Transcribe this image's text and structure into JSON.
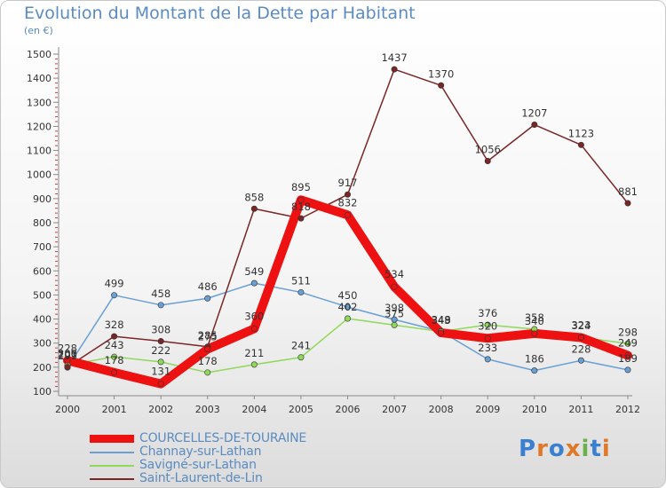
{
  "title": "Evolution du Montant de la Dette par Habitant",
  "unit": "(en €)",
  "logo": {
    "letters": [
      "P",
      "r",
      "o",
      "x",
      "i",
      "t",
      "i"
    ],
    "colors": [
      "#3a7fd0",
      "#e0782a",
      "#3a7fd0",
      "#e0782a",
      "#6ab04c",
      "#3a7fd0",
      "#e0782a"
    ]
  },
  "chart_data": {
    "type": "line",
    "title": "Evolution du Montant de la Dette par Habitant",
    "ylabel": "(en €)",
    "xlabel": "",
    "x": [
      "2000",
      "2001",
      "2002",
      "2003",
      "2004",
      "2005",
      "2006",
      "2007",
      "2008",
      "2009",
      "2010",
      "2011",
      "2012"
    ],
    "ylim": [
      100,
      1500
    ],
    "yticks": [
      "100",
      "200",
      "300",
      "400",
      "500",
      "600",
      "700",
      "800",
      "900",
      "1000",
      "1100",
      "1200",
      "1300",
      "1400",
      "1500"
    ],
    "grid": false,
    "legend": "bottom-left",
    "series": [
      {
        "name": "COURCELLES-DE-TOURAINE",
        "color": "#ee1111",
        "values": [
          228,
          178,
          131,
          275,
          360,
          895,
          832,
          534,
          343,
          320,
          340,
          323,
          249
        ],
        "labels": [
          "228",
          "178",
          "131",
          "275",
          "360",
          "895",
          "832",
          "534",
          "343",
          "320",
          "340",
          "323",
          "249"
        ]
      },
      {
        "name": "Channay-sur-Lathan",
        "color": "#6a9fd4",
        "values": [
          199,
          499,
          458,
          486,
          549,
          511,
          450,
          398,
          349,
          233,
          186,
          228,
          189
        ],
        "labels": [
          "199",
          "499",
          "458",
          "486",
          "549",
          "511",
          "450",
          "398",
          "349",
          "233",
          "186",
          "228",
          "189"
        ]
      },
      {
        "name": "Savigné-sur-Lathan",
        "color": "#8fd85a",
        "values": [
          209,
          243,
          222,
          178,
          211,
          241,
          402,
          375,
          348,
          376,
          358,
          324,
          298
        ],
        "labels": [
          "209",
          "243",
          "222",
          "178",
          "211",
          "241",
          "402",
          "375",
          "348",
          "376",
          "358",
          "324",
          "298"
        ]
      },
      {
        "name": "Saint-Laurent-de-Lin",
        "color": "#7a2626",
        "values": [
          201,
          328,
          308,
          285,
          858,
          818,
          917,
          1437,
          1370,
          1056,
          1207,
          1123,
          881
        ],
        "labels": [
          "201",
          "328",
          "308",
          "285",
          "858",
          "818",
          "917",
          "1437",
          "1370",
          "1056",
          "1207",
          "1123",
          "881"
        ]
      }
    ]
  }
}
